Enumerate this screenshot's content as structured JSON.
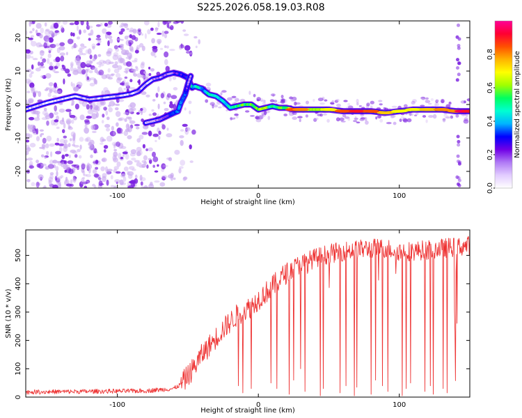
{
  "figure_title": "S225.2026.058.19.03.R08",
  "colors": {
    "snr_line": "#ee3333",
    "ridge_edge": "#6a00e0",
    "scatter_dense": "#7a1fe0",
    "scatter_light": "#c9a8f0",
    "colormap": [
      "#ffffff",
      "#e2ccff",
      "#b07af5",
      "#7000e6",
      "#0000ff",
      "#00b4ff",
      "#00ffd2",
      "#00ff60",
      "#a0ff00",
      "#ffff00",
      "#ffb400",
      "#ff5000",
      "#ff0032",
      "#ff0096"
    ]
  },
  "chart_data": [
    {
      "type": "heatmap",
      "title": "S225.2026.058.19.03.R08",
      "xlabel": "Height of straight line (km)",
      "ylabel": "Frequency (Hz)",
      "xlim": [
        -165,
        150
      ],
      "ylim": [
        -25,
        25
      ],
      "xticks": [
        -100,
        0,
        100
      ],
      "yticks": [
        -20,
        -10,
        0,
        10,
        20
      ],
      "colorbar": {
        "label": "Normalized spectral amplitude",
        "range": [
          0.0,
          1.0
        ],
        "ticks": [
          0.0,
          0.2,
          0.4,
          0.6,
          0.8
        ]
      },
      "ridge_x": [
        -165,
        -150,
        -140,
        -130,
        -120,
        -110,
        -100,
        -95,
        -90,
        -85,
        -80,
        -75,
        -70,
        -65,
        -60,
        -55,
        -50,
        -47,
        -45,
        -42,
        -40,
        -38,
        -35,
        -30,
        -25,
        -20,
        -15,
        -10,
        -5,
        0,
        5,
        10,
        15,
        20,
        25,
        30,
        40,
        50,
        60,
        70,
        80,
        90,
        100,
        110,
        120,
        130,
        140,
        145,
        150
      ],
      "ridge_y": [
        -1.5,
        0.5,
        1.5,
        2.5,
        1.5,
        2.0,
        2.5,
        2.8,
        3.2,
        4.0,
        6.0,
        7.5,
        8.0,
        9.0,
        9.5,
        9.0,
        8.0,
        5.0,
        5.5,
        5.0,
        4.8,
        4.0,
        3.0,
        2.5,
        1.0,
        -1.0,
        -0.5,
        0.0,
        0.0,
        -1.5,
        -1.0,
        -0.5,
        -1.0,
        -1.0,
        -1.5,
        -1.5,
        -1.5,
        -1.5,
        -2.0,
        -2.0,
        -2.0,
        -2.5,
        -2.0,
        -1.5,
        -1.5,
        -1.5,
        -2.0,
        -2.0,
        -2.0
      ],
      "ridge_amplitude": [
        0.05,
        0.08,
        0.08,
        0.08,
        0.08,
        0.08,
        0.1,
        0.1,
        0.1,
        0.1,
        0.1,
        0.1,
        0.12,
        0.15,
        0.2,
        0.25,
        0.3,
        0.45,
        0.4,
        0.45,
        0.4,
        0.4,
        0.45,
        0.5,
        0.4,
        0.45,
        0.5,
        0.55,
        0.55,
        0.6,
        0.6,
        0.5,
        0.55,
        0.55,
        0.85,
        0.8,
        0.6,
        0.7,
        0.85,
        0.9,
        0.85,
        0.75,
        0.7,
        0.7,
        0.75,
        0.8,
        0.8,
        0.95,
        0.9
      ],
      "branch_x": [
        -80,
        -75,
        -70,
        -65,
        -60,
        -57,
        -55,
        -52,
        -50,
        -48
      ],
      "branch_y": [
        -5.5,
        -5.0,
        -4.5,
        -3.5,
        -2.5,
        -2.0,
        0.5,
        3.0,
        6.0,
        8.5
      ],
      "branch_amplitude": [
        0.1,
        0.12,
        0.15,
        0.2,
        0.3,
        0.35,
        0.35,
        0.3,
        0.2,
        0.15
      ]
    },
    {
      "type": "line",
      "xlabel": "Height of straight line (km)",
      "ylabel": "SNR (10 * v/v)",
      "xlim": [
        -165,
        150
      ],
      "ylim": [
        0,
        590
      ],
      "xticks": [
        -100,
        0,
        100
      ],
      "yticks": [
        0,
        100,
        200,
        300,
        400,
        500
      ],
      "series": [
        {
          "name": "SNR",
          "envelope_x": [
            -165,
            -120,
            -80,
            -60,
            -55,
            -50,
            -45,
            -40,
            -35,
            -30,
            -25,
            -20,
            -15,
            -10,
            -5,
            0,
            10,
            20,
            30,
            40,
            50,
            60,
            70,
            80,
            90,
            100,
            110,
            120,
            130,
            140,
            150
          ],
          "envelope_y": [
            18,
            20,
            22,
            30,
            45,
            75,
            110,
            150,
            180,
            210,
            240,
            265,
            290,
            305,
            320,
            345,
            390,
            440,
            470,
            490,
            505,
            515,
            520,
            525,
            525,
            515,
            515,
            520,
            525,
            530,
            535
          ],
          "dropouts": [
            {
              "x": -14,
              "y": 40
            },
            {
              "x": -11,
              "y": 15
            },
            {
              "x": -5,
              "y": 30
            },
            {
              "x": 9,
              "y": 50
            },
            {
              "x": 13,
              "y": 30
            },
            {
              "x": 22,
              "y": 10
            },
            {
              "x": 25,
              "y": 60
            },
            {
              "x": 30,
              "y": 100
            },
            {
              "x": 33,
              "y": 20
            },
            {
              "x": 44,
              "y": 5
            },
            {
              "x": 46,
              "y": 30
            },
            {
              "x": 58,
              "y": 15
            },
            {
              "x": 62,
              "y": 40
            },
            {
              "x": 68,
              "y": 5
            },
            {
              "x": 70,
              "y": 35
            },
            {
              "x": 80,
              "y": 10
            },
            {
              "x": 83,
              "y": 60
            },
            {
              "x": 88,
              "y": 40
            },
            {
              "x": 92,
              "y": 20
            },
            {
              "x": 102,
              "y": 5
            },
            {
              "x": 105,
              "y": 30
            },
            {
              "x": 108,
              "y": 50
            },
            {
              "x": 118,
              "y": 20
            },
            {
              "x": 122,
              "y": 40
            },
            {
              "x": 124,
              "y": 10
            },
            {
              "x": 131,
              "y": 30
            },
            {
              "x": 134,
              "y": 15
            },
            {
              "x": 140,
              "y": 45
            }
          ]
        }
      ]
    }
  ]
}
